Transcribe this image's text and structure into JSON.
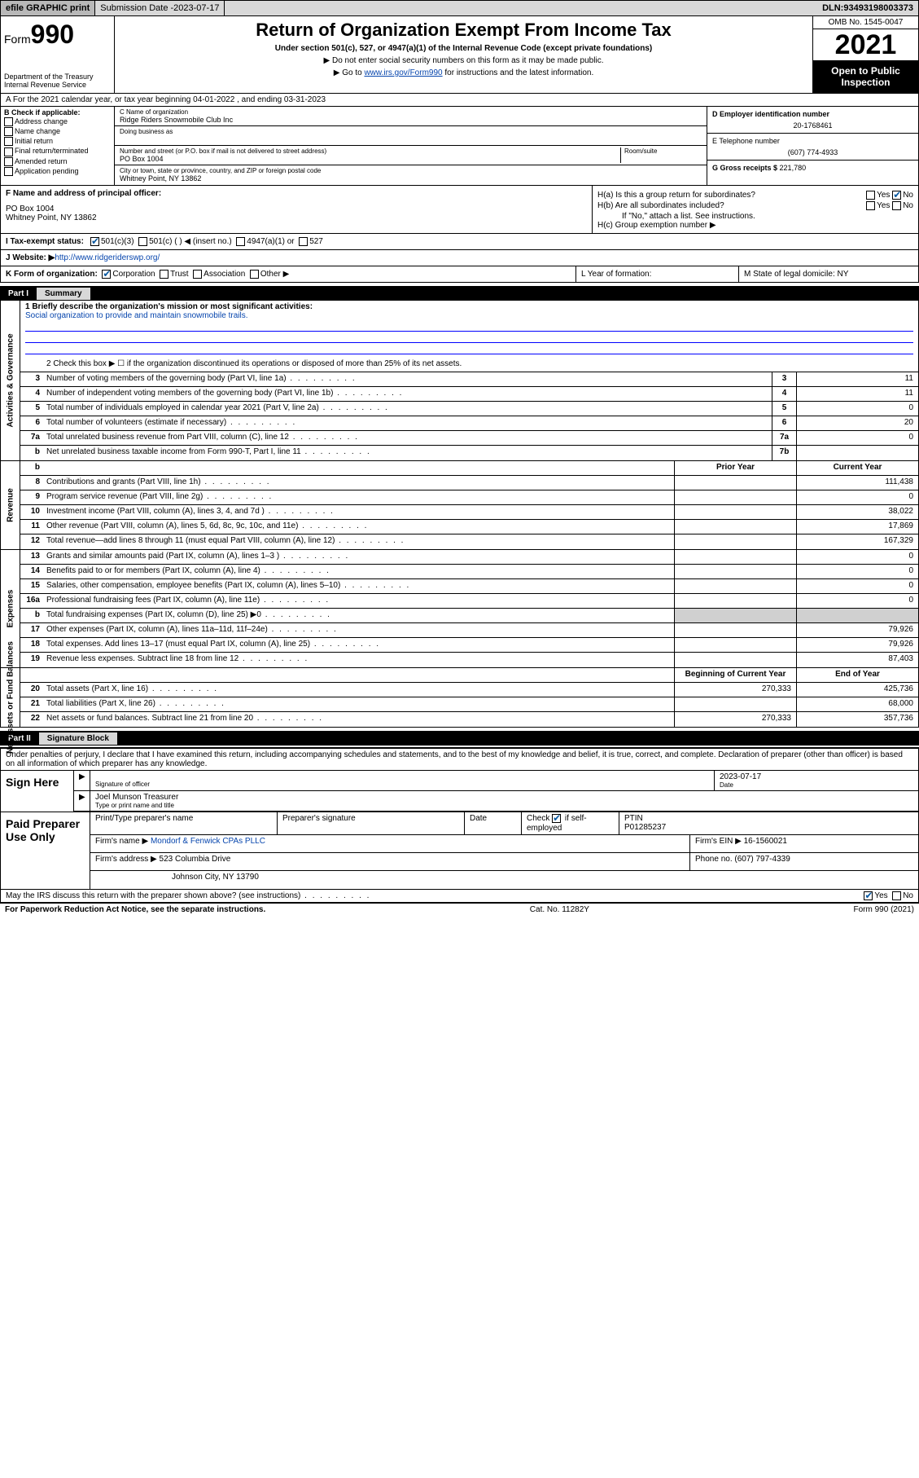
{
  "topbar": {
    "efile": "efile GRAPHIC print",
    "subdate_label": "Submission Date - ",
    "subdate": "2023-07-17",
    "dln_label": "DLN: ",
    "dln": "93493198003373"
  },
  "header": {
    "form_word": "Form",
    "form_num": "990",
    "dept": "Department of the Treasury\nInternal Revenue Service",
    "title": "Return of Organization Exempt From Income Tax",
    "sub": "Under section 501(c), 527, or 4947(a)(1) of the Internal Revenue Code (except private foundations)",
    "note1": "▶ Do not enter social security numbers on this form as it may be made public.",
    "note2a": "▶ Go to ",
    "note2_link": "www.irs.gov/Form990",
    "note2b": " for instructions and the latest information.",
    "omb": "OMB No. 1545-0047",
    "year": "2021",
    "open": "Open to Public Inspection"
  },
  "rowA": "A For the 2021 calendar year, or tax year beginning 04-01-2022    , and ending 03-31-2023",
  "boxB": {
    "label": "B Check if applicable:",
    "items": [
      "Address change",
      "Name change",
      "Initial return",
      "Final return/terminated",
      "Amended return",
      "Application pending"
    ]
  },
  "boxC": {
    "name_label": "C Name of organization",
    "name": "Ridge Riders Snowmobile Club Inc",
    "dba_label": "Doing business as",
    "dba": "",
    "addr_label": "Number and street (or P.O. box if mail is not delivered to street address)",
    "room_label": "Room/suite",
    "addr": "PO Box 1004",
    "city_label": "City or town, state or province, country, and ZIP or foreign postal code",
    "city": "Whitney Point, NY  13862"
  },
  "boxD": {
    "ein_label": "D Employer identification number",
    "ein": "20-1768461",
    "tel_label": "E Telephone number",
    "tel": "(607) 774-4933",
    "gross_label": "G Gross receipts $ ",
    "gross": "221,780"
  },
  "boxF": {
    "label": "F Name and address of principal officer:",
    "line1": "PO Box 1004",
    "line2": "Whitney Point, NY  13862"
  },
  "boxH": {
    "ha": "H(a)  Is this a group return for subordinates?",
    "ha_yes": "Yes",
    "ha_no": "No",
    "hb": "H(b)  Are all subordinates included?",
    "hb_yes": "Yes",
    "hb_no": "No",
    "hb_note": "If \"No,\" attach a list. See instructions.",
    "hc": "H(c)  Group exemption number ▶"
  },
  "rowI": {
    "label": "I   Tax-exempt status:",
    "opts": [
      "501(c)(3)",
      "501(c) (  ) ◀ (insert no.)",
      "4947(a)(1) or",
      "527"
    ],
    "checked": 0
  },
  "rowJ": {
    "label": "J   Website: ▶ ",
    "url": "http://www.ridgeriderswp.org/"
  },
  "rowK": {
    "label": "K Form of organization:",
    "opts": [
      "Corporation",
      "Trust",
      "Association",
      "Other ▶"
    ],
    "checked": 0,
    "L": "L Year of formation:",
    "M": "M State of legal domicile: NY"
  },
  "parts": {
    "p1": "Part I",
    "p1t": "Summary",
    "p2": "Part II",
    "p2t": "Signature Block"
  },
  "summary": {
    "mission_label": "1  Briefly describe the organization's mission or most significant activities:",
    "mission": "Social organization to provide and maintain snowmobile trails.",
    "line2": "2   Check this box ▶ ☐  if the organization discontinued its operations or disposed of more than 25% of its net assets.",
    "gov": [
      {
        "n": "3",
        "d": "Number of voting members of the governing body (Part VI, line 1a)",
        "b": "3",
        "v": "11"
      },
      {
        "n": "4",
        "d": "Number of independent voting members of the governing body (Part VI, line 1b)",
        "b": "4",
        "v": "11"
      },
      {
        "n": "5",
        "d": "Total number of individuals employed in calendar year 2021 (Part V, line 2a)",
        "b": "5",
        "v": "0"
      },
      {
        "n": "6",
        "d": "Total number of volunteers (estimate if necessary)",
        "b": "6",
        "v": "20"
      },
      {
        "n": "7a",
        "d": "Total unrelated business revenue from Part VIII, column (C), line 12",
        "b": "7a",
        "v": "0"
      },
      {
        "n": "b",
        "d": "Net unrelated business taxable income from Form 990-T, Part I, line 11",
        "b": "7b",
        "v": ""
      }
    ],
    "hdr_prior": "Prior Year",
    "hdr_curr": "Current Year",
    "rev": [
      {
        "n": "8",
        "d": "Contributions and grants (Part VIII, line 1h)",
        "p": "",
        "c": "111,438"
      },
      {
        "n": "9",
        "d": "Program service revenue (Part VIII, line 2g)",
        "p": "",
        "c": "0"
      },
      {
        "n": "10",
        "d": "Investment income (Part VIII, column (A), lines 3, 4, and 7d )",
        "p": "",
        "c": "38,022"
      },
      {
        "n": "11",
        "d": "Other revenue (Part VIII, column (A), lines 5, 6d, 8c, 9c, 10c, and 11e)",
        "p": "",
        "c": "17,869"
      },
      {
        "n": "12",
        "d": "Total revenue—add lines 8 through 11 (must equal Part VIII, column (A), line 12)",
        "p": "",
        "c": "167,329"
      }
    ],
    "exp": [
      {
        "n": "13",
        "d": "Grants and similar amounts paid (Part IX, column (A), lines 1–3 )",
        "p": "",
        "c": "0"
      },
      {
        "n": "14",
        "d": "Benefits paid to or for members (Part IX, column (A), line 4)",
        "p": "",
        "c": "0"
      },
      {
        "n": "15",
        "d": "Salaries, other compensation, employee benefits (Part IX, column (A), lines 5–10)",
        "p": "",
        "c": "0"
      },
      {
        "n": "16a",
        "d": "Professional fundraising fees (Part IX, column (A), line 11e)",
        "p": "",
        "c": "0"
      },
      {
        "n": "b",
        "d": "Total fundraising expenses (Part IX, column (D), line 25) ▶0",
        "p": "shade",
        "c": "shade"
      },
      {
        "n": "17",
        "d": "Other expenses (Part IX, column (A), lines 11a–11d, 11f–24e)",
        "p": "",
        "c": "79,926"
      },
      {
        "n": "18",
        "d": "Total expenses. Add lines 13–17 (must equal Part IX, column (A), line 25)",
        "p": "",
        "c": "79,926"
      },
      {
        "n": "19",
        "d": "Revenue less expenses. Subtract line 18 from line 12",
        "p": "",
        "c": "87,403"
      }
    ],
    "na_hdr_b": "Beginning of Current Year",
    "na_hdr_e": "End of Year",
    "na": [
      {
        "n": "20",
        "d": "Total assets (Part X, line 16)",
        "p": "270,333",
        "c": "425,736"
      },
      {
        "n": "21",
        "d": "Total liabilities (Part X, line 26)",
        "p": "",
        "c": "68,000"
      },
      {
        "n": "22",
        "d": "Net assets or fund balances. Subtract line 21 from line 20",
        "p": "270,333",
        "c": "357,736"
      }
    ],
    "side_gov": "Activities & Governance",
    "side_rev": "Revenue",
    "side_exp": "Expenses",
    "side_na": "Net Assets or Fund Balances"
  },
  "sig": {
    "decl": "Under penalties of perjury, I declare that I have examined this return, including accompanying schedules and statements, and to the best of my knowledge and belief, it is true, correct, and complete. Declaration of preparer (other than officer) is based on all information of which preparer has any knowledge.",
    "sign_here": "Sign Here",
    "sig_officer": "Signature of officer",
    "date_label": "Date",
    "date": "2023-07-17",
    "name_title": "Joel Munson  Treasurer",
    "type_label": "Type or print name and title"
  },
  "prep": {
    "label": "Paid Preparer Use Only",
    "h1": "Print/Type preparer's name",
    "h2": "Preparer's signature",
    "h3": "Date",
    "h4a": "Check",
    "h4b": "if self-employed",
    "h5": "PTIN",
    "ptin": "P01285237",
    "firm_label": "Firm's name    ▶ ",
    "firm": "Mondorf & Fenwick CPAs PLLC",
    "ein_label": "Firm's EIN ▶ ",
    "ein": "16-1560021",
    "addr_label": "Firm's address ▶ ",
    "addr1": "523 Columbia Drive",
    "addr2": "Johnson City, NY  13790",
    "phone_label": "Phone no. ",
    "phone": "(607) 797-4339"
  },
  "may": {
    "q": "May the IRS discuss this return with the preparer shown above? (see instructions)",
    "yes": "Yes",
    "no": "No"
  },
  "footer": {
    "left": "For Paperwork Reduction Act Notice, see the separate instructions.",
    "mid": "Cat. No. 11282Y",
    "right": "Form 990 (2021)"
  }
}
